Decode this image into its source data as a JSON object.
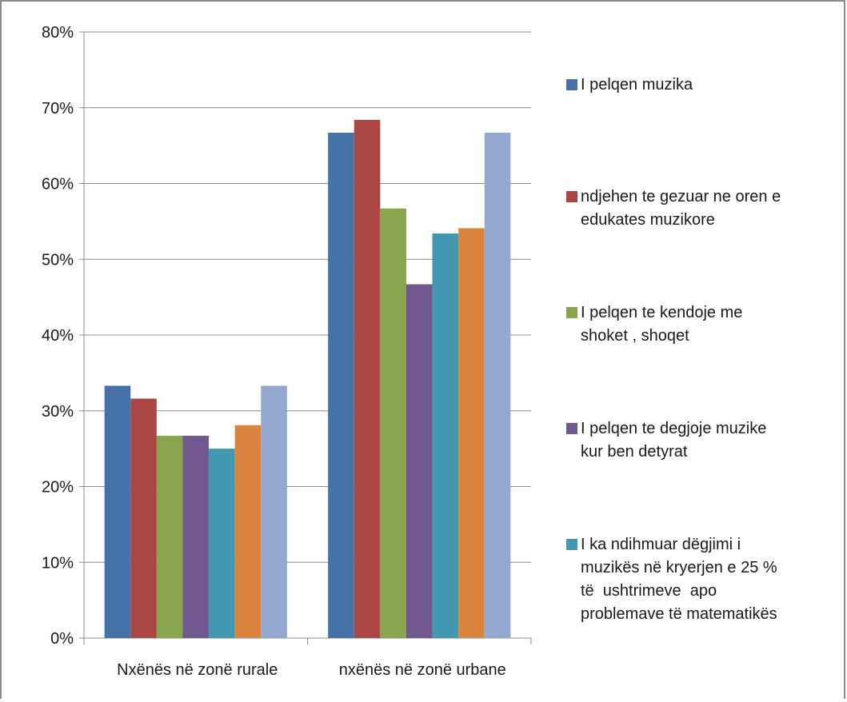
{
  "chart_data": {
    "type": "bar",
    "categories": [
      "Nxënës në zonë rurale",
      "nxënës në zonë urbane"
    ],
    "series": [
      {
        "name": "I pelqen muzika",
        "color": "#4572a7",
        "values": [
          33.3,
          66.7
        ]
      },
      {
        "name": "ndjehen te gezuar ne oren e edukates muzikore",
        "color": "#aa4643",
        "values": [
          31.6,
          68.4
        ]
      },
      {
        "name": "I pelqen te kendoje me shoket , shoqet",
        "color": "#89a54e",
        "values": [
          26.7,
          56.7
        ]
      },
      {
        "name": "I pelqen te degjoje muzike kur ben detyrat",
        "color": "#71588f",
        "values": [
          26.7,
          46.7
        ]
      },
      {
        "name": "I ka ndihmuar dëgjimi i muzikës në kryerjen e 25 % të  ushtrimeve  apo problemave të matematikës",
        "color": "#4198af",
        "values": [
          25.0,
          53.4
        ]
      },
      {
        "name": "",
        "color": "#db843d",
        "values": [
          28.1,
          54.1
        ]
      },
      {
        "name": "",
        "color": "#93a9cf",
        "values": [
          33.3,
          66.7
        ]
      }
    ],
    "yticks": [
      "0%",
      "10%",
      "20%",
      "30%",
      "40%",
      "50%",
      "60%",
      "70%",
      "80%"
    ],
    "ylim": [
      0,
      80
    ],
    "grid": true,
    "legend": "right"
  },
  "legend_lines": [
    [
      "I pelqen muzika"
    ],
    [
      "ndjehen te gezuar ne oren e",
      "edukates muzikore"
    ],
    [
      "I pelqen te kendoje me",
      "shoket , shoqet"
    ],
    [
      "I pelqen te degjoje muzike",
      "kur ben detyrat"
    ],
    [
      "I ka ndihmuar dëgjimi i",
      "muzikës në kryerjen e 25 %",
      "të  ushtrimeve  apo",
      "problemave të matematikës"
    ]
  ]
}
